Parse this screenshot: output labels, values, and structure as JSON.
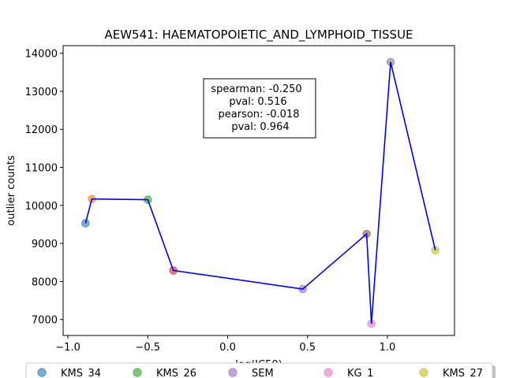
{
  "chart_data": {
    "type": "scatter",
    "title": "AEW541: HAEMATOPOIETIC_AND_LYMPHOID_TISSUE",
    "xlabel": "log(IC50)",
    "ylabel": "outlier counts",
    "xlim": [
      -1.03,
      1.42
    ],
    "ylim": [
      6580,
      14200
    ],
    "x_ticks": [
      -1.0,
      -0.5,
      0.0,
      0.5,
      1.0
    ],
    "x_tick_labels": [
      "−1.0",
      "−0.5",
      "0.0",
      "0.5",
      "1.0"
    ],
    "y_ticks": [
      7000,
      8000,
      9000,
      10000,
      11000,
      12000,
      13000,
      14000
    ],
    "y_tick_labels": [
      "7000",
      "8000",
      "9000",
      "10000",
      "11000",
      "12000",
      "13000",
      "14000"
    ],
    "grid": false,
    "points": [
      {
        "x": -0.89,
        "y": 9530,
        "color": "#1f77b4",
        "label": "KMS_34"
      },
      {
        "x": -0.85,
        "y": 10170,
        "color": "#ff7f0e"
      },
      {
        "x": -0.5,
        "y": 10150,
        "color": "#2ca02c",
        "label": "KMS_26"
      },
      {
        "x": -0.34,
        "y": 8290,
        "color": "#d62728"
      },
      {
        "x": 0.47,
        "y": 7800,
        "color": "#9467bd",
        "label": "SEM"
      },
      {
        "x": 0.87,
        "y": 9250,
        "color": "#8c564b"
      },
      {
        "x": 0.9,
        "y": 6890,
        "color": "#e377c2",
        "label": "KG_1"
      },
      {
        "x": 1.02,
        "y": 13770,
        "color": "#7f7f7f"
      },
      {
        "x": 1.3,
        "y": 8820,
        "color": "#bcbd22",
        "label": "KMS_27"
      }
    ],
    "line": {
      "color": "#0000ff",
      "x": [
        -0.89,
        -0.85,
        -0.5,
        -0.34,
        0.47,
        0.87,
        0.9,
        1.02,
        1.3
      ],
      "y": [
        9530,
        10170,
        10150,
        8290,
        7800,
        9250,
        6890,
        13770,
        8820
      ]
    },
    "stats_box": [
      "spearman: -0.250",
      "pval: 0.516",
      "pearson: -0.018",
      "pval: 0.964"
    ],
    "legend": {
      "placement": "bottom",
      "entries": [
        {
          "label": "KMS_34",
          "color": "#1f77b4"
        },
        {
          "label": "KMS_26",
          "color": "#2ca02c"
        },
        {
          "label": "SEM",
          "color": "#9467bd"
        },
        {
          "label": "KG_1",
          "color": "#e377c2"
        },
        {
          "label": "KMS_27",
          "color": "#bcbd22"
        }
      ]
    }
  }
}
